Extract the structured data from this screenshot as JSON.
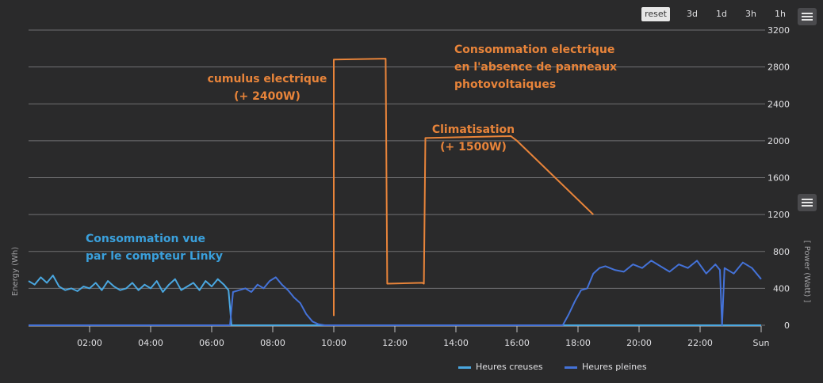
{
  "toolbar": {
    "zoom_buttons": [
      {
        "label": "reset",
        "active": true
      },
      {
        "label": "3d",
        "active": false
      },
      {
        "label": "1d",
        "active": false
      },
      {
        "label": "3h",
        "active": false
      },
      {
        "label": "1h",
        "active": false
      }
    ]
  },
  "menu_icon": "hamburger-menu-icon",
  "colors": {
    "background": "#2a2a2b",
    "grid": "#707073",
    "axis_text": "#e0e0e3",
    "heures_creuses": "#4aa7e0",
    "heures_pleines": "#4472d8",
    "annotation_orange": "#e8843a",
    "annotation_blue": "#3aa0dc"
  },
  "chart_data": {
    "type": "line",
    "xlabel": "",
    "x_ticks": [
      "02:00",
      "04:00",
      "06:00",
      "08:00",
      "10:00",
      "12:00",
      "14:00",
      "16:00",
      "18:00",
      "20:00",
      "22:00",
      "Sun"
    ],
    "x_range_hours": [
      0,
      24
    ],
    "y_left_label": "Energy (Wh)",
    "y_right_label": "[ Power (Watt) ]",
    "y_ticks": [
      0,
      400,
      800,
      1200,
      1600,
      2000,
      2400,
      2800,
      3200
    ],
    "ylim": [
      0,
      3200
    ],
    "grid": true,
    "legend_position": "bottom-right",
    "series": [
      {
        "name": "Heures creuses",
        "color": "#4aa7e0",
        "x": [
          0.0,
          0.2,
          0.4,
          0.6,
          0.8,
          1.0,
          1.2,
          1.4,
          1.6,
          1.8,
          2.0,
          2.2,
          2.4,
          2.6,
          2.8,
          3.0,
          3.2,
          3.4,
          3.6,
          3.8,
          4.0,
          4.2,
          4.4,
          4.6,
          4.8,
          5.0,
          5.2,
          5.4,
          5.6,
          5.8,
          6.0,
          6.2,
          6.4,
          6.55,
          6.65,
          6.8,
          24.0
        ],
        "y": [
          480,
          440,
          520,
          460,
          540,
          420,
          380,
          400,
          370,
          420,
          400,
          460,
          380,
          480,
          420,
          380,
          400,
          460,
          380,
          440,
          400,
          480,
          360,
          440,
          500,
          380,
          420,
          460,
          380,
          480,
          420,
          500,
          440,
          380,
          0,
          0,
          0
        ]
      },
      {
        "name": "Heures pleines",
        "color": "#4472d8",
        "x": [
          0.0,
          6.6,
          6.7,
          6.9,
          7.1,
          7.3,
          7.5,
          7.7,
          7.9,
          8.1,
          8.3,
          8.5,
          8.7,
          8.9,
          9.1,
          9.3,
          9.5,
          9.7,
          10.0,
          12.0,
          14.0,
          16.0,
          17.5,
          17.7,
          17.9,
          18.1,
          18.3,
          18.5,
          18.7,
          18.9,
          19.2,
          19.5,
          19.8,
          20.1,
          20.4,
          20.7,
          21.0,
          21.3,
          21.6,
          21.9,
          22.2,
          22.5,
          22.65,
          22.72,
          22.8,
          23.1,
          23.4,
          23.7,
          24.0
        ],
        "y": [
          0,
          0,
          360,
          380,
          400,
          360,
          440,
          400,
          480,
          520,
          440,
          380,
          300,
          240,
          120,
          40,
          10,
          0,
          0,
          0,
          0,
          0,
          0,
          120,
          260,
          380,
          400,
          560,
          620,
          640,
          600,
          580,
          660,
          620,
          700,
          640,
          580,
          660,
          620,
          700,
          560,
          660,
          600,
          0,
          620,
          560,
          680,
          620,
          500
        ]
      }
    ],
    "annotations": [
      {
        "lines": [
          "Consommation electrique",
          "en l'absence de panneaux",
          "photovoltaiques"
        ],
        "color": "#e8843a"
      },
      {
        "lines": [
          "cumulus electrique",
          "(+ 2400W)"
        ],
        "color": "#e8843a"
      },
      {
        "lines": [
          "Climatisation",
          "(+ 1500W)"
        ],
        "color": "#e8843a"
      },
      {
        "lines": [
          "Consommation vue",
          "par le compteur Linky"
        ],
        "color": "#3aa0dc"
      }
    ],
    "drawn_overlay": {
      "color": "#e8843a",
      "x": [
        10.0,
        10.0,
        11.7,
        11.75,
        12.9,
        12.95,
        13.0,
        15.8,
        16.0,
        18.5
      ],
      "y": [
        100,
        2880,
        2890,
        450,
        460,
        450,
        2030,
        2050,
        2000,
        1200
      ]
    }
  }
}
